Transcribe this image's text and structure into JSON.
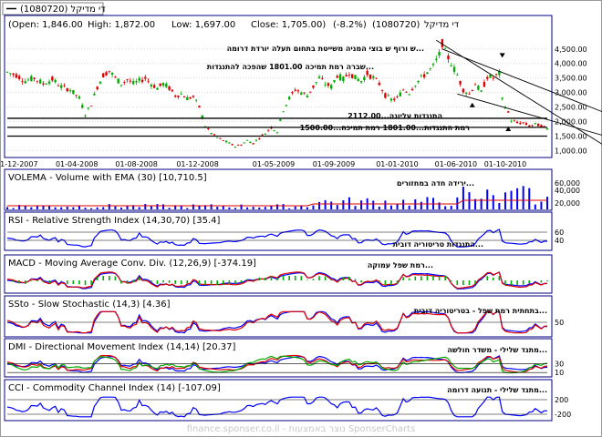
{
  "legend": {
    "label": "די מדיקל (1080720)"
  },
  "header": {
    "open": "(Open: 1,846.00",
    "high": "High: 1,872.00",
    "low": "Low: 1,697.00",
    "close": "Close: 1,705.00)",
    "change": "(-8.2%)",
    "security": "(1080720)",
    "name": "די מדיקל"
  },
  "chart_data": [
    {
      "panel": "price",
      "type": "candlestick",
      "y_ticks": [
        1000,
        1500,
        2000,
        2500,
        3000,
        3500,
        4000,
        4500
      ],
      "y_tick_labels": [
        "1,000.00",
        "1,500.00",
        "2,000.00",
        "2,500.00",
        "3,000.00",
        "3,500.00",
        "4,000.00",
        "4,500.00"
      ],
      "x_ticks": [
        "01-12-2007",
        "01-04-2008",
        "01-08-2008",
        "01-12-2008",
        "01-05-2009",
        "01-09-2009",
        "01-01-2010",
        "01-06-2010",
        "01-10-2010"
      ],
      "close_path": [
        [
          0,
          3700
        ],
        [
          3,
          3600
        ],
        [
          6,
          3400
        ],
        [
          9,
          3500
        ],
        [
          12,
          3300
        ],
        [
          15,
          3450
        ],
        [
          18,
          3200
        ],
        [
          21,
          3100
        ],
        [
          24,
          2800
        ],
        [
          26,
          2250
        ],
        [
          28,
          2600
        ],
        [
          30,
          3200
        ],
        [
          32,
          3600
        ],
        [
          34,
          3750
        ],
        [
          36,
          3500
        ],
        [
          38,
          3300
        ],
        [
          40,
          3450
        ],
        [
          42,
          3300
        ],
        [
          44,
          3400
        ],
        [
          46,
          3500
        ],
        [
          48,
          3300
        ],
        [
          50,
          3150
        ],
        [
          52,
          3300
        ],
        [
          54,
          3150
        ],
        [
          56,
          2900
        ],
        [
          58,
          2950
        ],
        [
          60,
          2800
        ],
        [
          62,
          2850
        ],
        [
          64,
          2500
        ],
        [
          66,
          1850
        ],
        [
          68,
          1600
        ],
        [
          70,
          1450
        ],
        [
          72,
          1350
        ],
        [
          74,
          1250
        ],
        [
          76,
          1150
        ],
        [
          78,
          1200
        ],
        [
          80,
          1350
        ],
        [
          82,
          1250
        ],
        [
          84,
          1450
        ],
        [
          86,
          1600
        ],
        [
          88,
          1800
        ],
        [
          90,
          1650
        ],
        [
          92,
          2400
        ],
        [
          94,
          2800
        ],
        [
          96,
          3100
        ],
        [
          98,
          3000
        ],
        [
          100,
          2900
        ],
        [
          102,
          3200
        ],
        [
          104,
          3500
        ],
        [
          106,
          3300
        ],
        [
          108,
          3200
        ],
        [
          110,
          3600
        ],
        [
          112,
          3450
        ],
        [
          114,
          3700
        ],
        [
          116,
          3500
        ],
        [
          118,
          3400
        ],
        [
          120,
          3650
        ],
        [
          122,
          3500
        ],
        [
          124,
          3300
        ],
        [
          126,
          2900
        ],
        [
          128,
          2750
        ],
        [
          130,
          2800
        ],
        [
          132,
          3100
        ],
        [
          134,
          3000
        ],
        [
          136,
          3300
        ],
        [
          138,
          3500
        ],
        [
          140,
          3700
        ],
        [
          142,
          3900
        ],
        [
          144,
          4300
        ],
        [
          145,
          4700
        ],
        [
          146,
          4400
        ],
        [
          148,
          4000
        ],
        [
          150,
          3600
        ],
        [
          152,
          3100
        ],
        [
          154,
          2950
        ],
        [
          156,
          3300
        ],
        [
          158,
          3000
        ],
        [
          160,
          3550
        ],
        [
          162,
          3500
        ],
        [
          164,
          3650
        ],
        [
          165,
          2750
        ],
        [
          167,
          2300
        ],
        [
          168,
          2050
        ],
        [
          170,
          1950
        ],
        [
          172,
          1950
        ],
        [
          174,
          1850
        ],
        [
          176,
          1900
        ],
        [
          178,
          1850
        ],
        [
          180,
          1750
        ]
      ],
      "horizontal_levels": [
        2112,
        1801,
        1500
      ],
      "annotations": [
        "ש ורוף ש בוצי המניה משייטת בתחום תעלה יורדת דרומה...",
        "שברה רמת תמיכה 1801.00 שהפכה להתנגדות...",
        "התנגדות עליונה...2112.00",
        "רמת התנגדות...1801.00 רמת תמיכה...1500.00"
      ]
    },
    {
      "panel": "volume",
      "title": "VOLEMA - Volume with EMA (30) [10,710.5]",
      "type": "bar",
      "y_ticks": [
        20000,
        40000,
        60000
      ],
      "y_tick_labels": [
        "20,000",
        "40,000",
        "60,000"
      ],
      "annotations": [
        "ירידה חדה במחזורים..."
      ]
    },
    {
      "panel": "rsi",
      "title": "RSI - Relative Strength Index (14,30,70) [35.4]",
      "type": "line",
      "y_ticks": [
        40,
        60
      ],
      "annotations": [
        "התנגדות טריטוריה דובית..."
      ]
    },
    {
      "panel": "macd",
      "title": "MACD - Moving Average Conv. Div. (12,26,9) [-374.19]",
      "type": "line",
      "annotations": [
        "רמת שפל עמוקה..."
      ]
    },
    {
      "panel": "ssto",
      "title": "SSto - Slow Stochastic (14,3) [4.36]",
      "type": "line",
      "y_ticks": [
        50
      ],
      "annotations": [
        "בתחתית רמת שפל - בטריטוריה דובית..."
      ]
    },
    {
      "panel": "dmi",
      "title": "DMI - Directional Movement Index (14,14) [20.37]",
      "type": "line",
      "y_ticks": [
        10,
        30
      ],
      "annotations": [
        "מתנד שלילי - משדר חולשה..."
      ]
    },
    {
      "panel": "cci",
      "title": "CCI - Commodity Channel Index (14) [-107.09]",
      "type": "line",
      "y_ticks": [
        -200,
        200
      ],
      "annotations": [
        "מתנד שלילי - תנועה דרומה..."
      ]
    }
  ],
  "footer": {
    "watermark": "finance.sponser.co.il - נוצר באמצעות SponserCharts"
  },
  "colors": {
    "up": "#00aa00",
    "down": "#dd0000",
    "blue": "#0000ff",
    "red": "#dd0000",
    "green": "#00aa00",
    "frame": "#000080"
  }
}
